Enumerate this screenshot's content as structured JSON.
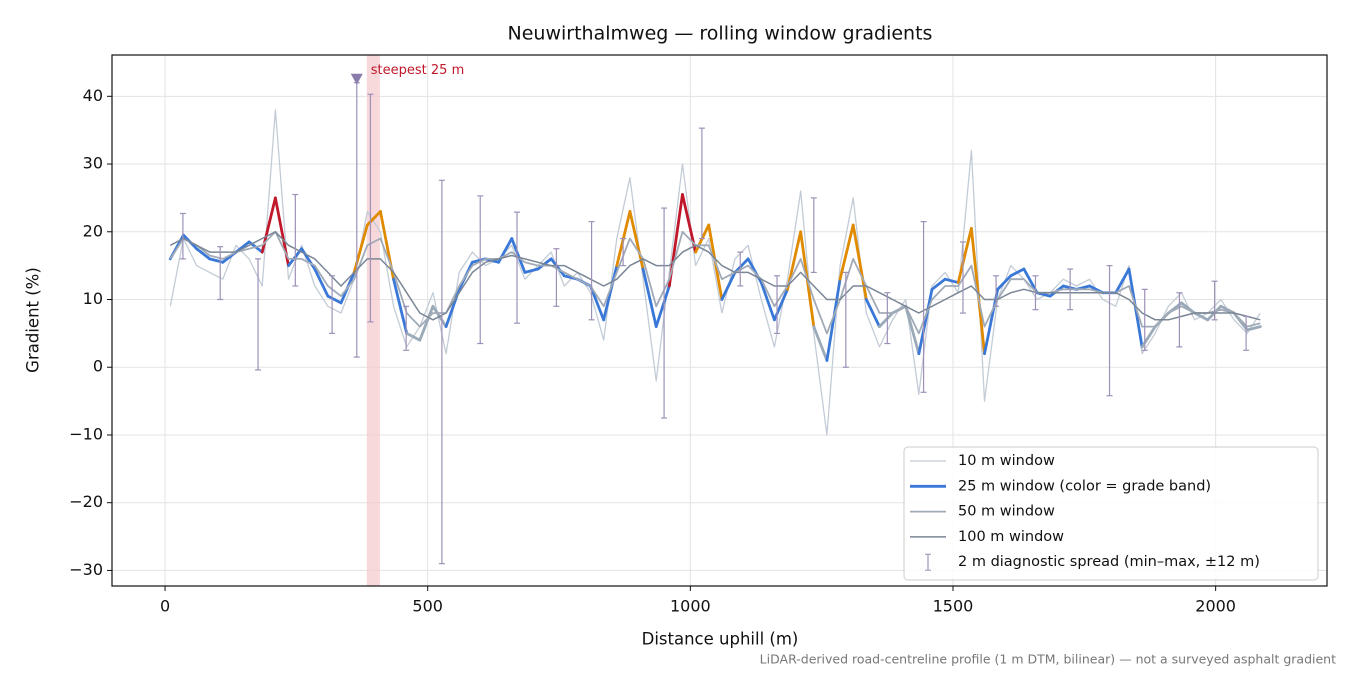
{
  "chart_data": {
    "type": "line",
    "title": "Neuwirthalmweg — rolling window gradients",
    "x_label": "Distance uphill (m)",
    "y_label": "Gradient (%)",
    "footnote": "LiDAR-derived road-centreline profile (1 m DTM, bilinear) — not a surveyed asphalt gradient",
    "xlim": [
      -101,
      2212
    ],
    "ylim": [
      -32.3,
      46.1
    ],
    "xticks": [
      0,
      500,
      1000,
      1500,
      2000
    ],
    "yticks": [
      {
        "value": -30,
        "label": "−30"
      },
      {
        "value": -20,
        "label": "−20"
      },
      {
        "value": -10,
        "label": "−10"
      },
      0,
      10,
      20,
      30,
      40
    ],
    "grid": true,
    "legend": "lower right",
    "x": [
      10,
      35,
      60,
      85,
      110,
      135,
      160,
      185,
      210,
      235,
      260,
      285,
      310,
      335,
      360,
      385,
      410,
      435,
      460,
      485,
      510,
      535,
      560,
      585,
      610,
      635,
      660,
      685,
      710,
      735,
      760,
      785,
      810,
      835,
      860,
      885,
      910,
      935,
      960,
      985,
      1010,
      1035,
      1060,
      1085,
      1110,
      1135,
      1160,
      1185,
      1210,
      1235,
      1260,
      1285,
      1310,
      1335,
      1360,
      1385,
      1410,
      1435,
      1460,
      1485,
      1510,
      1535,
      1560,
      1585,
      1610,
      1635,
      1660,
      1685,
      1710,
      1735,
      1760,
      1785,
      1810,
      1835,
      1860,
      1885,
      1910,
      1935,
      1960,
      1985,
      2010,
      2035,
      2060,
      2085
    ],
    "series": [
      {
        "name": "10 m window",
        "color": "#c3ccd6",
        "values": [
          9,
          19,
          15,
          14,
          13,
          18,
          16,
          12,
          38,
          13,
          18,
          12,
          9,
          8,
          13,
          23,
          20,
          9,
          3,
          6,
          11,
          2,
          14,
          17,
          15,
          16,
          18,
          13,
          15,
          17,
          12,
          14,
          11,
          4,
          19,
          28,
          13,
          -2,
          14,
          30,
          15,
          19,
          8,
          16,
          18,
          10,
          3,
          13,
          26,
          5,
          -10,
          15,
          25,
          8,
          3,
          7,
          10,
          -4,
          12,
          14,
          11,
          32,
          -5,
          10,
          15,
          13,
          10,
          11,
          13,
          12,
          13,
          10,
          9,
          15,
          2,
          5,
          9,
          11,
          7,
          8,
          10,
          7,
          5,
          8
        ]
      },
      {
        "name": "25 m window (color = grade band)",
        "color": "#3a78d8",
        "bands": {
          "edges": [
            10,
            20,
            25
          ],
          "colors": [
            "#9aaab8",
            "#3a78d8",
            "#e08a00",
            "#c0182a"
          ]
        },
        "values": [
          16,
          19.5,
          17.5,
          16,
          15.5,
          17,
          18.5,
          17,
          25,
          15,
          17.5,
          14.5,
          10.5,
          9.5,
          14,
          21,
          23,
          13,
          5,
          4,
          9,
          6,
          11.5,
          15.5,
          16,
          15.5,
          19,
          14,
          14.5,
          16,
          13.5,
          13,
          12,
          7,
          15,
          23,
          14.5,
          6,
          12,
          25.5,
          17,
          21,
          10,
          14,
          16,
          12.5,
          7,
          11.5,
          20,
          6,
          1,
          13,
          21,
          10,
          6,
          8,
          9,
          2,
          11.5,
          13,
          12.5,
          20.5,
          2,
          11.5,
          13.5,
          14.5,
          11,
          10.5,
          12,
          11.5,
          12,
          11,
          11,
          14.5,
          3,
          6,
          8,
          9.5,
          8,
          7,
          9,
          8,
          5.5,
          6
        ]
      },
      {
        "name": "50 m window",
        "color": "#a1abb7",
        "values": [
          16,
          19,
          18,
          16.5,
          16,
          17,
          17.5,
          18,
          20,
          16,
          16,
          15,
          12,
          10.5,
          13,
          18,
          19,
          14,
          8,
          6,
          8,
          8,
          12,
          15,
          16,
          16,
          17,
          15.5,
          15,
          15,
          14,
          13,
          12,
          9,
          14,
          19,
          16,
          9,
          13,
          20,
          18,
          18,
          13,
          14,
          15,
          13,
          9,
          12,
          16,
          10,
          5,
          10,
          16,
          12,
          8,
          8,
          9,
          5,
          10,
          12,
          12,
          15,
          6,
          10,
          13,
          13,
          11,
          11,
          11.5,
          11.5,
          11.5,
          11,
          11,
          12,
          6,
          6,
          8,
          9,
          8,
          8,
          8.5,
          8,
          6,
          6.5
        ]
      },
      {
        "name": "100 m window",
        "color": "#7a8696",
        "values": [
          18,
          19,
          18,
          17,
          17,
          17,
          18,
          19,
          20,
          18,
          17,
          16,
          14,
          12,
          14,
          16,
          16,
          14,
          11,
          8,
          7,
          8,
          11,
          14,
          15.5,
          16,
          16.5,
          16,
          15.5,
          15,
          15,
          14,
          13,
          12,
          13,
          15,
          16,
          15,
          15,
          17,
          18,
          17,
          15,
          14,
          14,
          13,
          12,
          12,
          14,
          12,
          10,
          10,
          12,
          12,
          11,
          10,
          9,
          8,
          9,
          10,
          11,
          12,
          10,
          10,
          11,
          11.5,
          11,
          11,
          11,
          11,
          11,
          11,
          11,
          10,
          8,
          7,
          7,
          7.5,
          8,
          8,
          8,
          8,
          7.5,
          7
        ]
      }
    ],
    "spread": {
      "name": "2 m diagnostic spread (min–max, ±12 m)",
      "color": "#9d91b8",
      "x": [
        34,
        105,
        177,
        248,
        318,
        365,
        391,
        459,
        527,
        600,
        670,
        745,
        812,
        872,
        950,
        1022,
        1095,
        1165,
        1235,
        1296,
        1375,
        1444,
        1519,
        1582,
        1657,
        1723,
        1798,
        1865,
        1931,
        1998,
        2058
      ],
      "low": [
        16,
        10,
        -0.4,
        12,
        5,
        1.5,
        6.7,
        2.5,
        -29,
        3.5,
        6.5,
        9,
        7,
        15,
        -7.5,
        19,
        12,
        5,
        14,
        0,
        3.5,
        -3.7,
        8,
        9,
        8.5,
        8.5,
        -4.2,
        2.5,
        3,
        7,
        2.5
      ],
      "high": [
        22.7,
        17.8,
        16,
        25.5,
        13.5,
        42,
        40.3,
        9,
        27.6,
        25.3,
        22.9,
        17.5,
        21.5,
        19,
        23.5,
        35.3,
        17,
        13.5,
        25,
        14,
        11,
        21.5,
        18.5,
        13.5,
        13.5,
        14.5,
        15,
        11.5,
        11,
        12.7,
        7.5
      ]
    },
    "highlight": {
      "label": "steepest 25 m",
      "x0": 384,
      "x1": 409,
      "color": "#f4c7cc",
      "label_color": "#c0182a",
      "marker_x": 365,
      "marker_y": 42.6,
      "marker_color": "#8a7cab"
    }
  }
}
